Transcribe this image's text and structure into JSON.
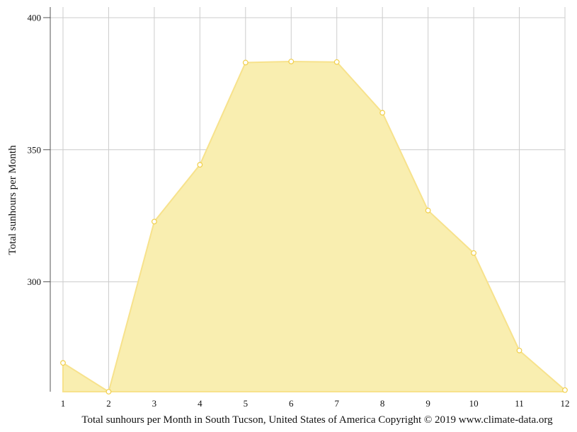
{
  "chart_data": {
    "type": "area",
    "x": [
      "1",
      "2",
      "3",
      "4",
      "5",
      "6",
      "7",
      "8",
      "9",
      "10",
      "11",
      "12"
    ],
    "series": [
      {
        "values": [
          269.3,
          258.4,
          322.8,
          344.3,
          383.0,
          383.4,
          383.2,
          364.0,
          327.0,
          310.9,
          274.0,
          259.0
        ]
      }
    ],
    "ylabel": "Total sunhours per Month",
    "xlabel": "",
    "ylim": [
      258.4,
      404
    ],
    "yticks": [
      300,
      350,
      400
    ],
    "grid": true,
    "colors": {
      "fill": "#f9eeb0",
      "stroke": "#f7e28c",
      "point_stroke": "#f1cf4a"
    }
  },
  "footer": {
    "text": "Total sunhours per Month in South Tucson, United States of America Copyright © 2019 www.climate-data.org"
  }
}
